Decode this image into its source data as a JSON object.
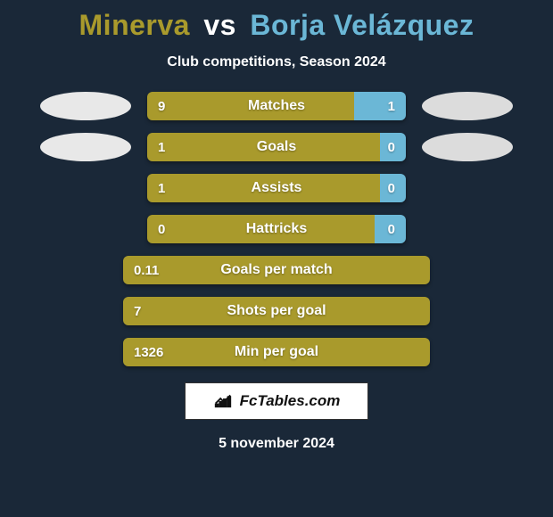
{
  "colors": {
    "background": "#1a2838",
    "p1": "#a99a2c",
    "p2": "#6bb7d6",
    "blob_left": "#e8e8e8",
    "blob_right": "#dcdcdc",
    "white": "#ffffff"
  },
  "title": {
    "player1": "Minerva",
    "vs": "vs",
    "player2": "Borja Velázquez"
  },
  "subtitle": "Club competitions, Season 2024",
  "stats": [
    {
      "label": "Matches",
      "left_val": "9",
      "right_val": "1",
      "left_pct": 80,
      "right_pct": 20,
      "show_blobs": true,
      "bar_width": "narrow"
    },
    {
      "label": "Goals",
      "left_val": "1",
      "right_val": "0",
      "left_pct": 90,
      "right_pct": 10,
      "show_blobs": true,
      "bar_width": "narrow"
    },
    {
      "label": "Assists",
      "left_val": "1",
      "right_val": "0",
      "left_pct": 90,
      "right_pct": 10,
      "show_blobs": false,
      "bar_width": "narrow"
    },
    {
      "label": "Hattricks",
      "left_val": "0",
      "right_val": "0",
      "left_pct": 88,
      "right_pct": 12,
      "show_blobs": false,
      "bar_width": "narrow"
    },
    {
      "label": "Goals per match",
      "left_val": "0.11",
      "right_val": "",
      "left_pct": 100,
      "right_pct": 0,
      "show_blobs": false,
      "bar_width": "wide"
    },
    {
      "label": "Shots per goal",
      "left_val": "7",
      "right_val": "",
      "left_pct": 100,
      "right_pct": 0,
      "show_blobs": false,
      "bar_width": "wide"
    },
    {
      "label": "Min per goal",
      "left_val": "1326",
      "right_val": "",
      "left_pct": 100,
      "right_pct": 0,
      "show_blobs": false,
      "bar_width": "wide"
    }
  ],
  "watermark": "FcTables.com",
  "date": "5 november 2024"
}
